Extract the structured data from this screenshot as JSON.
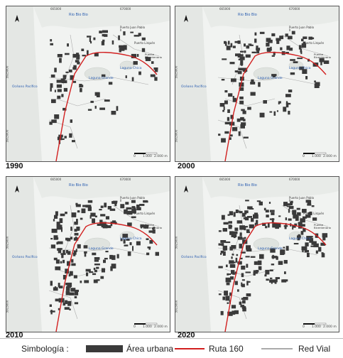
{
  "colors": {
    "urban": "#3a3a3a",
    "route": "#d21f1f",
    "roads": "#aaaaaa",
    "land": "#f1f3f1",
    "sea": "#e4e7e4",
    "label": "#2a5db0"
  },
  "panels": [
    {
      "year": "1990",
      "top_coords": [
        "665000",
        "670000"
      ],
      "side_coords": [
        "5925000",
        "5915000"
      ],
      "labels": {
        "river": "Rio Bio Bio",
        "ocean": "Océano Pacífico",
        "laguna_grande": "Laguna Grande",
        "laguna_chica": "Laguna Chica",
        "puerto_juan_pablo": "Puerto Juan Pablo II",
        "puerto_lirquen": "Puerto Lirquén",
        "puente": "Puente Bicentenario"
      },
      "scale": [
        "0",
        "1.000",
        "2.000 m"
      ]
    },
    {
      "year": "2000",
      "top_coords": [
        "665000",
        "670000"
      ],
      "side_coords": [
        "5925000",
        "5915000"
      ],
      "labels": {
        "river": "Rio Bio Bio",
        "ocean": "Océano Pacífico",
        "laguna_grande": "Laguna Grande",
        "laguna_chica": "Laguna Chica",
        "puerto_juan_pablo": "Puerto Juan Pablo II",
        "puerto_lirquen": "Puerto Lirquén",
        "puente": "Puente Bicentenario"
      },
      "scale": [
        "0",
        "1.000",
        "2.000 m"
      ]
    },
    {
      "year": "2010",
      "top_coords": [
        "665000",
        "670000"
      ],
      "side_coords": [
        "5925000",
        "5915000"
      ],
      "labels": {
        "river": "Rio Bio Bio",
        "ocean": "Océano Pacífico",
        "laguna_grande": "Laguna Grande",
        "laguna_chica": "Laguna Chica",
        "puerto_juan_pablo": "Puerto Juan Pablo II",
        "puerto_lirquen": "Puerto Lirquén",
        "puente": "Puente Bicentenario"
      },
      "scale": [
        "0",
        "1.000",
        "2.000 m"
      ]
    },
    {
      "year": "2020",
      "top_coords": [
        "665000",
        "670000"
      ],
      "side_coords": [
        "5925000",
        "5915000"
      ],
      "labels": {
        "river": "Rio Bio Bio",
        "ocean": "Océano Pacífico",
        "laguna_grande": "Laguna Grande",
        "laguna_chica": "Laguna Chica",
        "puerto_juan_pablo": "Puerto Juan Pablo II",
        "puerto_lirquen": "Puerto Lirquén",
        "puente": "Puente Bicentenario"
      },
      "scale": [
        "0",
        "1.000",
        "2.000 m"
      ]
    }
  ],
  "legend": {
    "title": "Simbología :",
    "urban": "Área urbana",
    "route": "Ruta 160",
    "roads": "Red Vial"
  }
}
